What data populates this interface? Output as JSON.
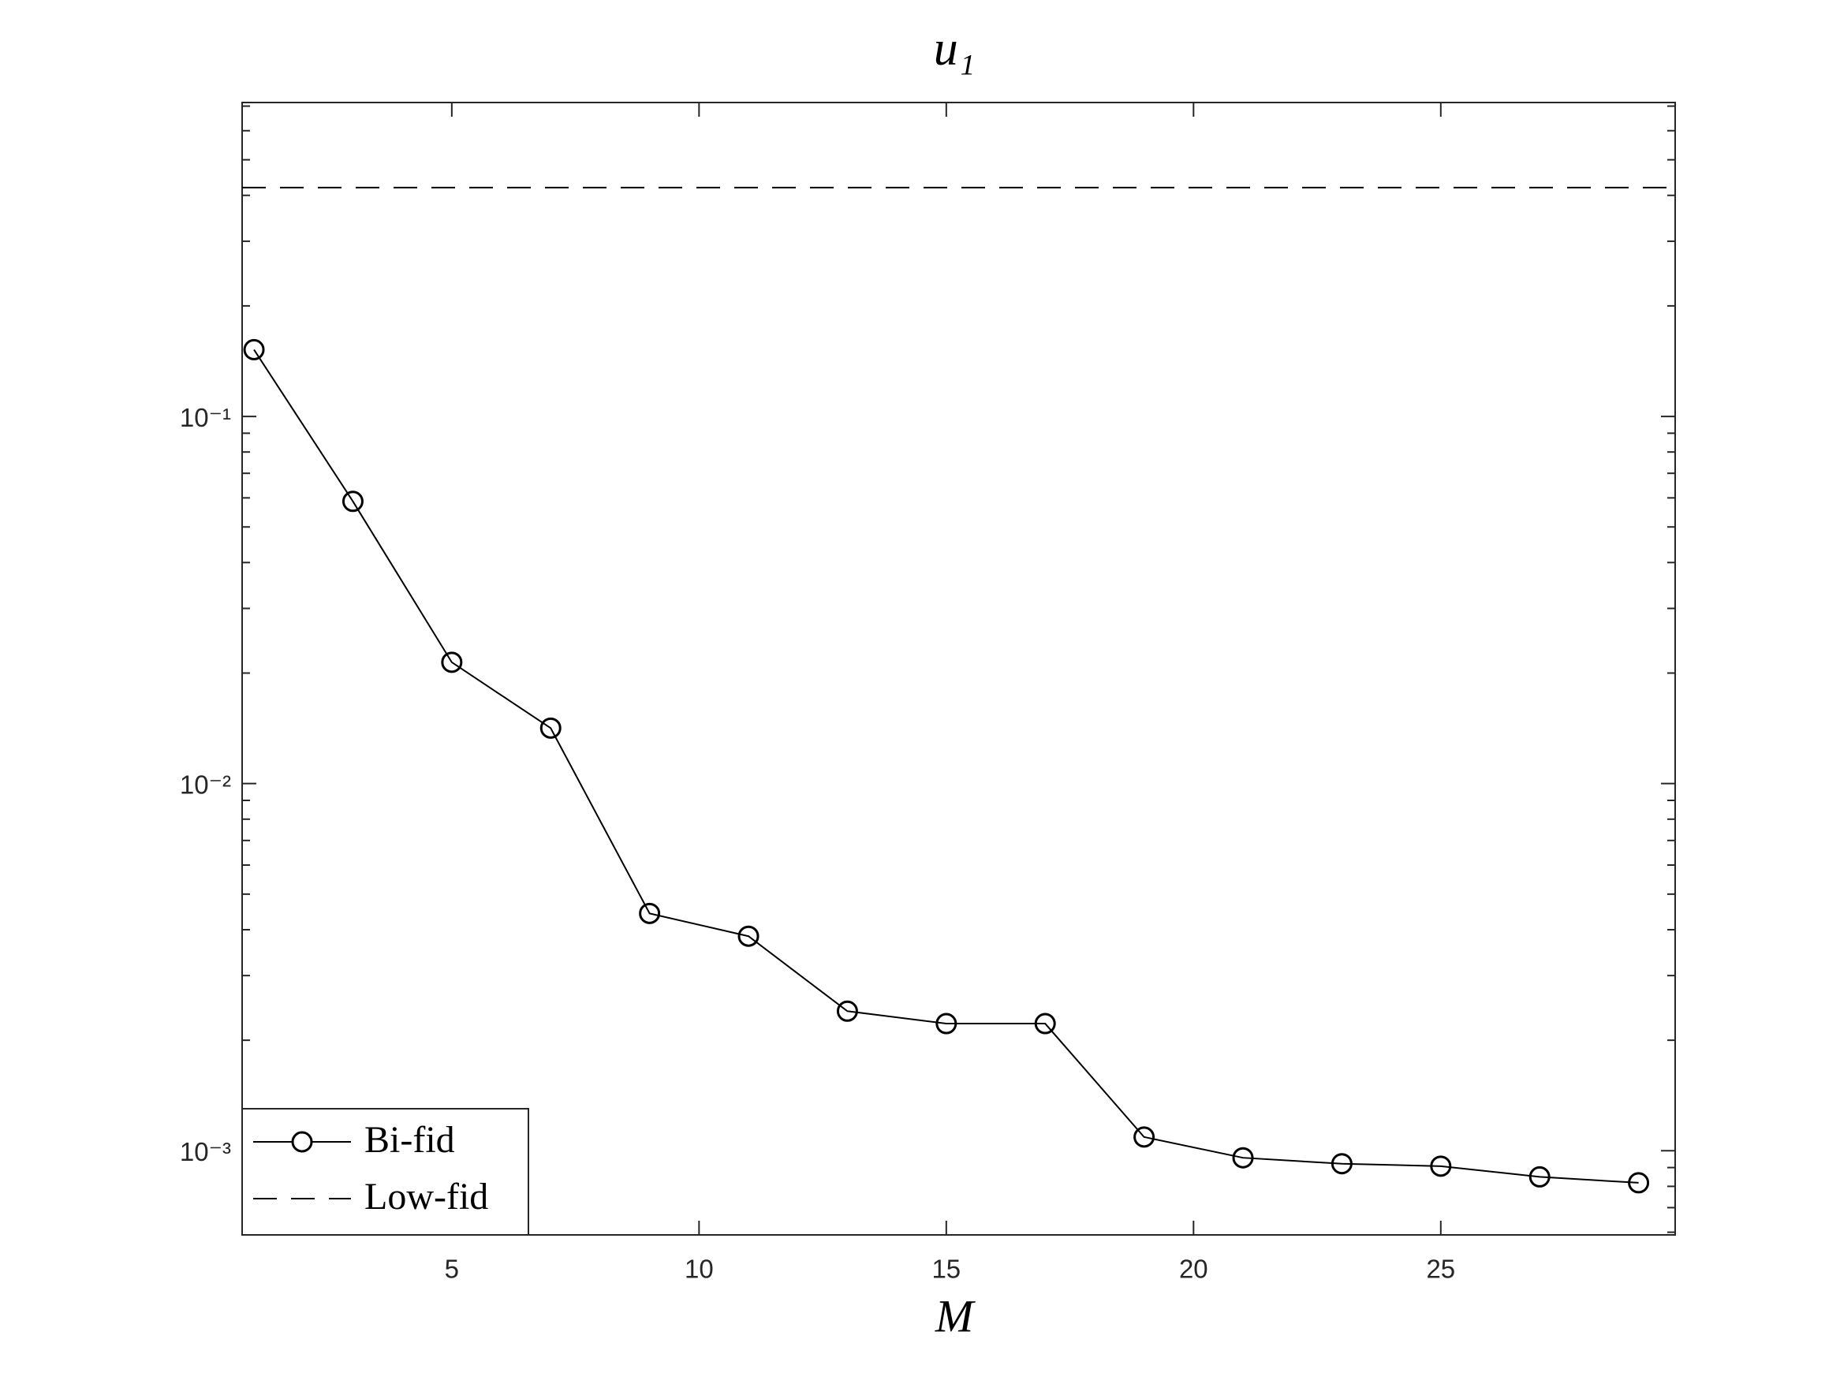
{
  "chart_data": {
    "type": "line",
    "title": "u₁",
    "x_label": "M",
    "series": [
      {
        "name": "Bi-fid",
        "color": "#000000",
        "marker": "circle",
        "x": [
          1,
          3,
          5,
          7,
          9,
          11,
          13,
          15,
          17,
          19,
          21,
          23,
          25,
          27,
          29
        ],
        "values": [
          0.152,
          0.0587,
          0.0214,
          0.01416,
          0.00443,
          0.00384,
          0.0024,
          0.00222,
          0.00222,
          0.00109,
          0.000957,
          0.000922,
          0.000908,
          0.000849,
          0.000818
        ]
      },
      {
        "name": "Low-fid",
        "color": "#000000",
        "style": "dashed",
        "hline": 0.42
      }
    ],
    "xlim": [
      0.76,
      29.74
    ],
    "xticks": [
      5,
      10,
      15,
      20,
      25
    ],
    "ylim": [
      0.00059,
      0.716
    ],
    "ylog": true,
    "yticks": [
      {
        "value": 0.001,
        "label": "10⁻³"
      },
      {
        "value": 0.01,
        "label": "10⁻²"
      },
      {
        "value": 0.1,
        "label": "10⁻¹"
      }
    ],
    "yminorticks": [
      0.0006,
      0.0007,
      0.0008,
      0.0009,
      0.002,
      0.003,
      0.004,
      0.005,
      0.006,
      0.007,
      0.008,
      0.009,
      0.02,
      0.03,
      0.04,
      0.05,
      0.06,
      0.07,
      0.08,
      0.09,
      0.2,
      0.3,
      0.4,
      0.5,
      0.6,
      0.7
    ],
    "legend": "lower-left",
    "grid": false
  }
}
